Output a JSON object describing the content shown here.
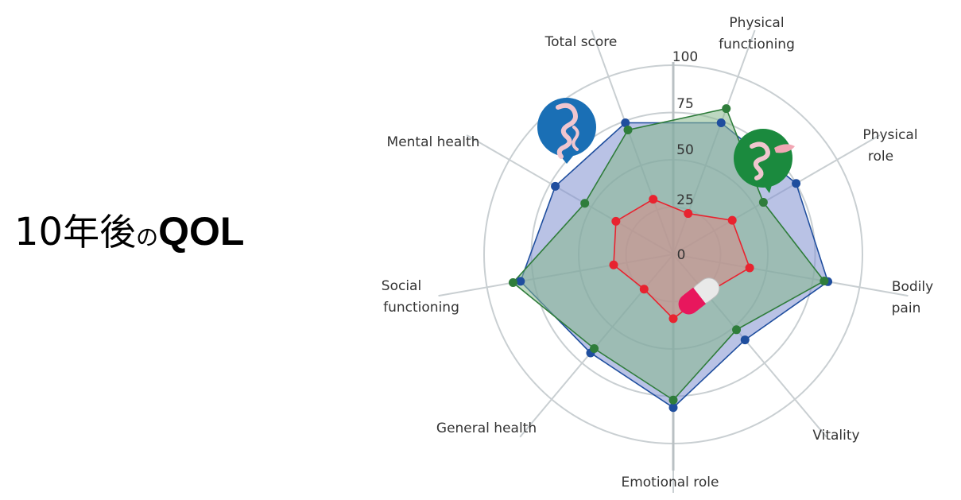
{
  "headline": {
    "num": "10",
    "kanji": "年後",
    "no": "の",
    "qol": "QOL"
  },
  "chart_data": {
    "type": "radar",
    "axes": [
      {
        "key": "physical_functioning",
        "lines": [
          "Physical",
          "functioning"
        ]
      },
      {
        "key": "physical_role",
        "lines": [
          "Physical",
          "role"
        ]
      },
      {
        "key": "bodily_pain",
        "lines": [
          "Bodily",
          "pain"
        ]
      },
      {
        "key": "vitality",
        "lines": [
          "Vitality"
        ]
      },
      {
        "key": "emotional_role",
        "lines": [
          "Emotional role"
        ]
      },
      {
        "key": "general_health",
        "lines": [
          "General health"
        ]
      },
      {
        "key": "social_functioning",
        "lines": [
          "Social",
          "functioning"
        ]
      },
      {
        "key": "mental_health",
        "lines": [
          "Mental health"
        ]
      },
      {
        "key": "total_score",
        "lines": [
          "Total score"
        ]
      }
    ],
    "ticks": [
      "0",
      "25",
      "50",
      "75",
      "100"
    ],
    "rmin": 0,
    "rmax": 100,
    "grid": true,
    "series": [
      {
        "icon": "stomach-intestine-icon",
        "color": "#1f4e9e",
        "fill": "#7f8fd0",
        "values": [
          74,
          75,
          83,
          59,
          81,
          68,
          82,
          72,
          74
        ]
      },
      {
        "icon": "intestine-pancreas-icon",
        "color": "#2f7d3b",
        "fill": "#86b88d",
        "values": [
          82,
          55,
          81,
          52,
          77,
          65,
          86,
          54,
          70
        ]
      },
      {
        "icon": "pill-capsule-icon",
        "color": "#e8232f",
        "fill": "#d98a86",
        "values": [
          23,
          36,
          41,
          27,
          34,
          24,
          32,
          35,
          31
        ]
      }
    ]
  }
}
